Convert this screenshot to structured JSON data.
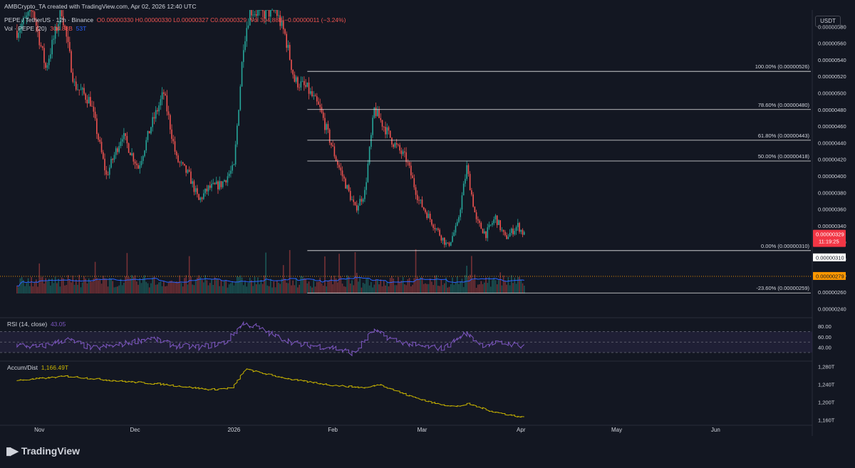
{
  "header": {
    "attribution": "AMBCrypto_TA created with TradingView.com, Apr 02, 2026 12:40 UTC",
    "symbol": "PEPE / TetherUS · 12h · Binance",
    "ohlc": "O0.00000330  H0.00000330  L0.00000327  C0.00000329",
    "volume_change": "Vol 304.88B  −0.00000011 (−3.24%)",
    "vol_indicator": "Vol · PEPE (20)",
    "vol_value": "304.88B",
    "vol_ma": "53T"
  },
  "currency_button": "USDT",
  "brand": "TradingView",
  "colors": {
    "background": "#131722",
    "up": "#26a69a",
    "down": "#ef5350",
    "fib": "#e8e8e8",
    "rsi": "#7e57c2",
    "ad": "#c9b400",
    "volume_ma": "#2962ff",
    "price_tag": "#f23645",
    "dotted_level": "#ff9800"
  },
  "chart_data": [
    {
      "type": "candlestick",
      "title": "PEPE / TetherUS · 12h · Binance",
      "ylabel": "USDT",
      "ylim": [
        2.3e-06,
        6e-06
      ],
      "x_ticks": [
        "Nov",
        "Dec",
        "2026",
        "Feb",
        "Mar",
        "Apr",
        "May",
        "Jun"
      ],
      "y_ticks": [
        "0.00000580",
        "0.00000560",
        "0.00000540",
        "0.00000520",
        "0.00000500",
        "0.00000480",
        "0.00000460",
        "0.00000440",
        "0.00000420",
        "0.00000400",
        "0.00000380",
        "0.00000360",
        "0.00000340",
        "0.00000320",
        "0.00000300",
        "0.00000280",
        "0.00000260",
        "0.00000240"
      ],
      "price_path": [
        [
          "2025-10-25",
          5.75e-06
        ],
        [
          "2025-10-30",
          6e-06
        ],
        [
          "2025-11-03",
          5.3e-06
        ],
        [
          "2025-11-08",
          6e-06
        ],
        [
          "2025-11-12",
          5.1e-06
        ],
        [
          "2025-11-17",
          4.9e-06
        ],
        [
          "2025-11-22",
          4e-06
        ],
        [
          "2025-11-27",
          4.5e-06
        ],
        [
          "2025-12-02",
          4.1e-06
        ],
        [
          "2025-12-06",
          4.6e-06
        ],
        [
          "2025-12-10",
          5e-06
        ],
        [
          "2025-12-14",
          4.2e-06
        ],
        [
          "2025-12-18",
          4e-06
        ],
        [
          "2025-12-21",
          3.7e-06
        ],
        [
          "2025-12-24",
          3.85e-06
        ],
        [
          "2025-12-28",
          3.9e-06
        ],
        [
          "2026-01-01",
          4.1e-06
        ],
        [
          "2026-01-04",
          5.6e-06
        ],
        [
          "2026-01-06",
          6e-06
        ],
        [
          "2026-01-10",
          5.95e-06
        ],
        [
          "2026-01-14",
          6e-06
        ],
        [
          "2026-01-17",
          5.7e-06
        ],
        [
          "2026-01-20",
          5.15e-06
        ],
        [
          "2026-01-24",
          5.05e-06
        ],
        [
          "2026-01-28",
          4.8e-06
        ],
        [
          "2026-02-02",
          4.2e-06
        ],
        [
          "2026-02-05",
          3.9e-06
        ],
        [
          "2026-02-08",
          3.6e-06
        ],
        [
          "2026-02-11",
          3.8e-06
        ],
        [
          "2026-02-14",
          4.8e-06
        ],
        [
          "2026-02-17",
          4.6e-06
        ],
        [
          "2026-02-20",
          4.4e-06
        ],
        [
          "2026-02-24",
          4.2e-06
        ],
        [
          "2026-02-28",
          3.7e-06
        ],
        [
          "2026-03-04",
          3.45e-06
        ],
        [
          "2026-03-09",
          3.15e-06
        ],
        [
          "2026-03-12",
          3.4e-06
        ],
        [
          "2026-03-15",
          4.1e-06
        ],
        [
          "2026-03-18",
          3.45e-06
        ],
        [
          "2026-03-21",
          3.3e-06
        ],
        [
          "2026-03-24",
          3.5e-06
        ],
        [
          "2026-03-27",
          3.25e-06
        ],
        [
          "2026-03-31",
          3.4e-06
        ],
        [
          "2026-04-02",
          3.29e-06
        ]
      ],
      "fib_levels": [
        {
          "label": "100.00% (0.00000526)",
          "value": 5.26e-06
        },
        {
          "label": "78.60% (0.00000480)",
          "value": 4.8e-06
        },
        {
          "label": "61.80% (0.00000443)",
          "value": 4.43e-06
        },
        {
          "label": "50.00% (0.00000418)",
          "value": 4.18e-06
        },
        {
          "label": "0.00% (0.00000310)",
          "value": 3.1e-06
        },
        {
          "label": "-23.60% (0.00000259)",
          "value": 2.59e-06
        }
      ],
      "dotted_level": {
        "label": "0.00000279",
        "value": 2.79e-06
      },
      "last_price": {
        "label": "0.00000329",
        "countdown": "11:19:25",
        "value": 3.29e-06
      },
      "fib_price_tag": "0.00000310"
    },
    {
      "type": "line",
      "title": "RSI (14, close)",
      "value_label": "43.05",
      "ylim": [
        15,
        95
      ],
      "y_ticks": [
        "80.00",
        "60.00",
        "40.00"
      ],
      "bands": [
        70,
        50,
        30
      ],
      "series_path": [
        [
          "2025-10-25",
          45
        ],
        [
          "2025-11-01",
          40
        ],
        [
          "2025-11-10",
          55
        ],
        [
          "2025-11-18",
          38
        ],
        [
          "2025-11-26",
          44
        ],
        [
          "2025-12-06",
          58
        ],
        [
          "2025-12-14",
          43
        ],
        [
          "2025-12-22",
          40
        ],
        [
          "2025-12-30",
          50
        ],
        [
          "2026-01-04",
          85
        ],
        [
          "2026-01-08",
          80
        ],
        [
          "2026-01-14",
          62
        ],
        [
          "2026-01-22",
          45
        ],
        [
          "2026-02-01",
          40
        ],
        [
          "2026-02-08",
          28
        ],
        [
          "2026-02-14",
          72
        ],
        [
          "2026-02-20",
          55
        ],
        [
          "2026-02-28",
          42
        ],
        [
          "2026-03-08",
          38
        ],
        [
          "2026-03-15",
          67
        ],
        [
          "2026-03-20",
          45
        ],
        [
          "2026-03-27",
          48
        ],
        [
          "2026-04-02",
          43
        ]
      ]
    },
    {
      "type": "line",
      "title": "Accum/Dist",
      "value_label": "1,166.49T",
      "ylim": [
        1150,
        1290
      ],
      "y_ticks": [
        "1,280T",
        "1,240T",
        "1,200T",
        "1,160T"
      ],
      "series_path": [
        [
          "2025-10-25",
          1248
        ],
        [
          "2025-11-10",
          1258
        ],
        [
          "2025-11-25",
          1248
        ],
        [
          "2025-12-10",
          1240
        ],
        [
          "2025-12-25",
          1228
        ],
        [
          "2026-01-01",
          1232
        ],
        [
          "2026-01-05",
          1274
        ],
        [
          "2026-01-12",
          1262
        ],
        [
          "2026-01-20",
          1250
        ],
        [
          "2026-02-01",
          1238
        ],
        [
          "2026-02-12",
          1232
        ],
        [
          "2026-02-16",
          1240
        ],
        [
          "2026-02-25",
          1215
        ],
        [
          "2026-03-05",
          1198
        ],
        [
          "2026-03-12",
          1190
        ],
        [
          "2026-03-16",
          1196
        ],
        [
          "2026-03-24",
          1178
        ],
        [
          "2026-04-02",
          1166
        ]
      ]
    }
  ]
}
